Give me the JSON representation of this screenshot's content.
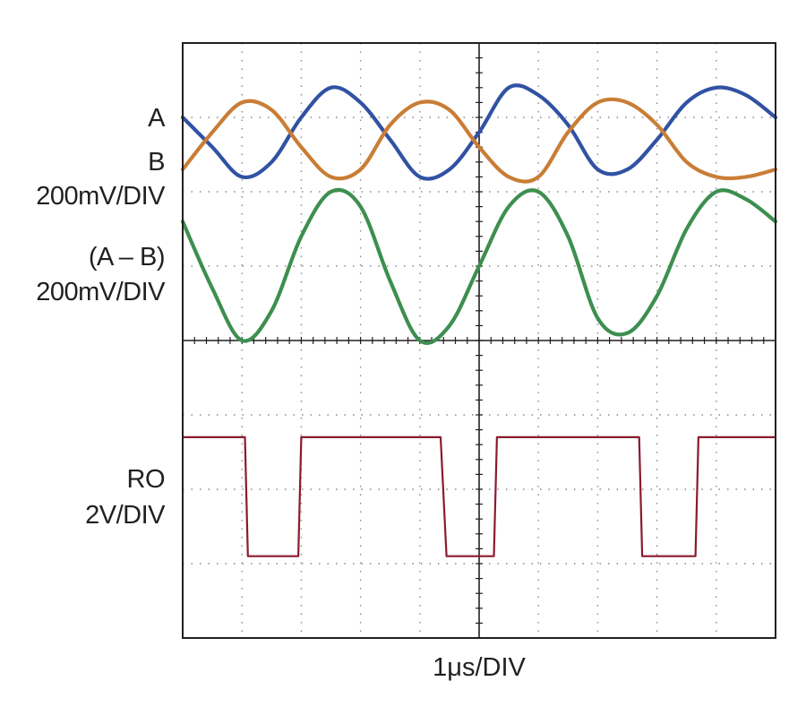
{
  "labels": {
    "a": "A",
    "b": "B",
    "ab_scale": "200mV/DIV",
    "diff": "(A – B)",
    "diff_scale": "200mV/DIV",
    "ro": "RO",
    "ro_scale": "2V/DIV",
    "time_scale": "1μs/DIV"
  },
  "chart_data": {
    "type": "line",
    "title": "",
    "xlabel": "1μs/DIV",
    "ylabel": "",
    "x_divisions": 10,
    "y_divisions": 8,
    "x_unit": "div",
    "xlim": [
      0,
      10
    ],
    "grid": true,
    "series": [
      {
        "name": "A",
        "color": "#3152a3",
        "scale": "200mV/DIV",
        "x": [
          0,
          0.5,
          1,
          1.5,
          2,
          2.5,
          3,
          3.5,
          4,
          4.5,
          5,
          5.5,
          6,
          6.5,
          7,
          7.5,
          8,
          8.5,
          9,
          9.5,
          10
        ],
        "y": [
          7.0,
          6.6,
          6.2,
          6.4,
          7.0,
          7.4,
          7.2,
          6.7,
          6.2,
          6.3,
          6.8,
          7.4,
          7.3,
          6.9,
          6.3,
          6.3,
          6.7,
          7.2,
          7.4,
          7.3,
          7.0
        ]
      },
      {
        "name": "B",
        "color": "#c97d35",
        "scale": "200mV/DIV",
        "x": [
          0,
          0.5,
          1,
          1.5,
          2,
          2.5,
          3,
          3.5,
          4,
          4.5,
          5,
          5.5,
          6,
          6.5,
          7,
          7.5,
          8,
          8.5,
          9,
          9.5,
          10
        ],
        "y": [
          6.3,
          6.8,
          7.2,
          7.1,
          6.6,
          6.2,
          6.3,
          6.9,
          7.2,
          7.1,
          6.6,
          6.2,
          6.2,
          6.8,
          7.2,
          7.2,
          6.9,
          6.4,
          6.2,
          6.2,
          6.3
        ]
      },
      {
        "name": "(A – B)",
        "color": "#3d8f4f",
        "scale": "200mV/DIV",
        "x": [
          0,
          0.5,
          1,
          1.5,
          2,
          2.5,
          3,
          3.5,
          4,
          4.5,
          5,
          5.5,
          6,
          6.5,
          7,
          7.5,
          8,
          8.5,
          9,
          9.5,
          10
        ],
        "y": [
          5.6,
          4.7,
          4.0,
          4.4,
          5.4,
          6.0,
          5.8,
          4.8,
          4.0,
          4.2,
          5.0,
          5.8,
          6.0,
          5.4,
          4.3,
          4.1,
          4.6,
          5.5,
          6.0,
          5.9,
          5.6
        ]
      },
      {
        "name": "RO",
        "color": "#8b1a2e",
        "scale": "2V/DIV",
        "x": [
          0,
          1.05,
          1.1,
          1.95,
          2.0,
          4.35,
          4.45,
          5.25,
          5.3,
          7.7,
          7.75,
          8.65,
          8.7,
          10
        ],
        "y": [
          2.7,
          2.7,
          1.1,
          1.1,
          2.7,
          2.7,
          1.1,
          1.1,
          2.7,
          2.7,
          1.1,
          1.1,
          2.7,
          2.7
        ]
      }
    ]
  }
}
